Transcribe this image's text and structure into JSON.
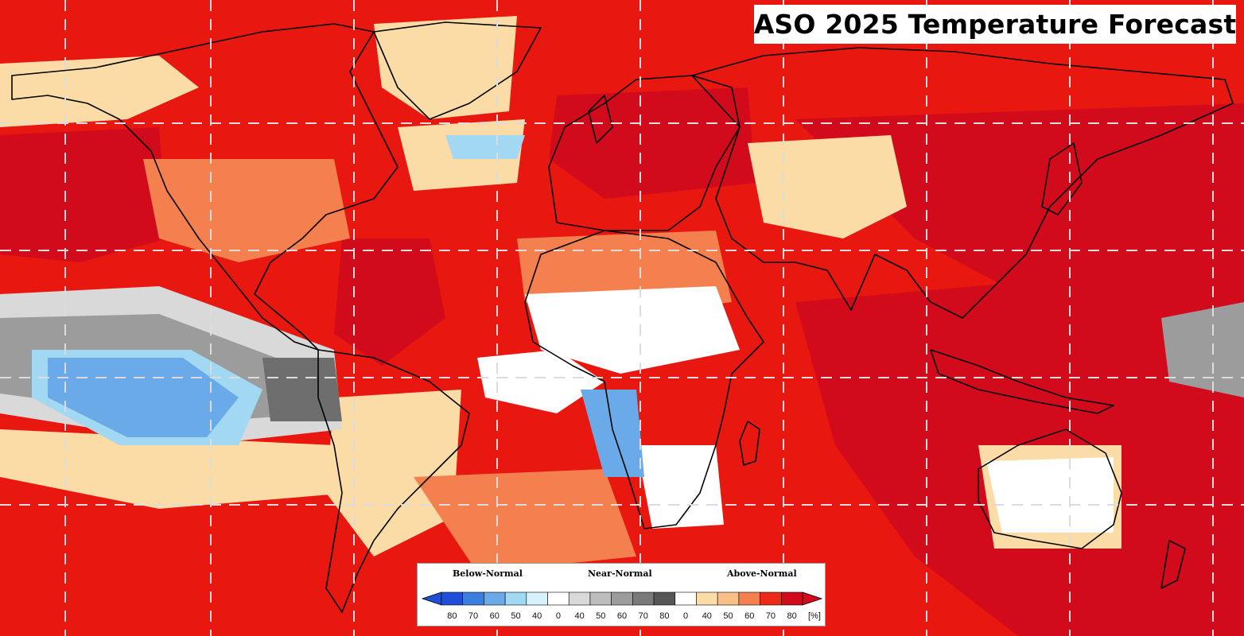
{
  "title": "ASO 2025 Temperature Forecast",
  "legend": {
    "categories": {
      "below": "Below-Normal",
      "near": "Near-Normal",
      "above": "Above-Normal"
    },
    "tick_labels": [
      "80",
      "70",
      "60",
      "50",
      "40",
      "0",
      "40",
      "50",
      "60",
      "70",
      "80",
      "0",
      "40",
      "50",
      "60",
      "70",
      "80"
    ],
    "unit": "[%]",
    "bins": [
      {
        "group": "below",
        "probability": 80,
        "color": "#1e4fd6"
      },
      {
        "group": "below",
        "probability": 70,
        "color": "#3a7fe0"
      },
      {
        "group": "below",
        "probability": 60,
        "color": "#6aaae8"
      },
      {
        "group": "below",
        "probability": 50,
        "color": "#a3d8f2"
      },
      {
        "group": "below",
        "probability": 40,
        "color": "#d8f2fb"
      },
      {
        "group": "near",
        "probability": 0,
        "color": "#ffffff"
      },
      {
        "group": "near",
        "probability": 40,
        "color": "#d9d9d9"
      },
      {
        "group": "near",
        "probability": 50,
        "color": "#bdbdbd"
      },
      {
        "group": "near",
        "probability": 60,
        "color": "#9c9c9c"
      },
      {
        "group": "near",
        "probability": 70,
        "color": "#7a7a7a"
      },
      {
        "group": "near",
        "probability": 80,
        "color": "#565656"
      },
      {
        "group": "above",
        "probability": 0,
        "color": "#ffffff"
      },
      {
        "group": "above",
        "probability": 40,
        "color": "#fbdca6"
      },
      {
        "group": "above",
        "probability": 50,
        "color": "#f9bf87"
      },
      {
        "group": "above",
        "probability": 60,
        "color": "#f4804f"
      },
      {
        "group": "above",
        "probability": 70,
        "color": "#ec2a18"
      },
      {
        "group": "above",
        "probability": 80,
        "color": "#d10a1c"
      }
    ]
  },
  "map": {
    "colors": {
      "ocean_base": "#e8170f",
      "strong_red": "#d10a1c",
      "peach": "#fbdca6",
      "orange": "#f4804f",
      "white": "#ffffff",
      "light_gray": "#d9d9d9",
      "gray": "#9c9c9c",
      "dark_gray": "#6e6e6e",
      "light_blue": "#a3d8f2",
      "blue": "#6aaae8",
      "border_line": "#000000",
      "grid_line": "#dcdcdc"
    }
  }
}
